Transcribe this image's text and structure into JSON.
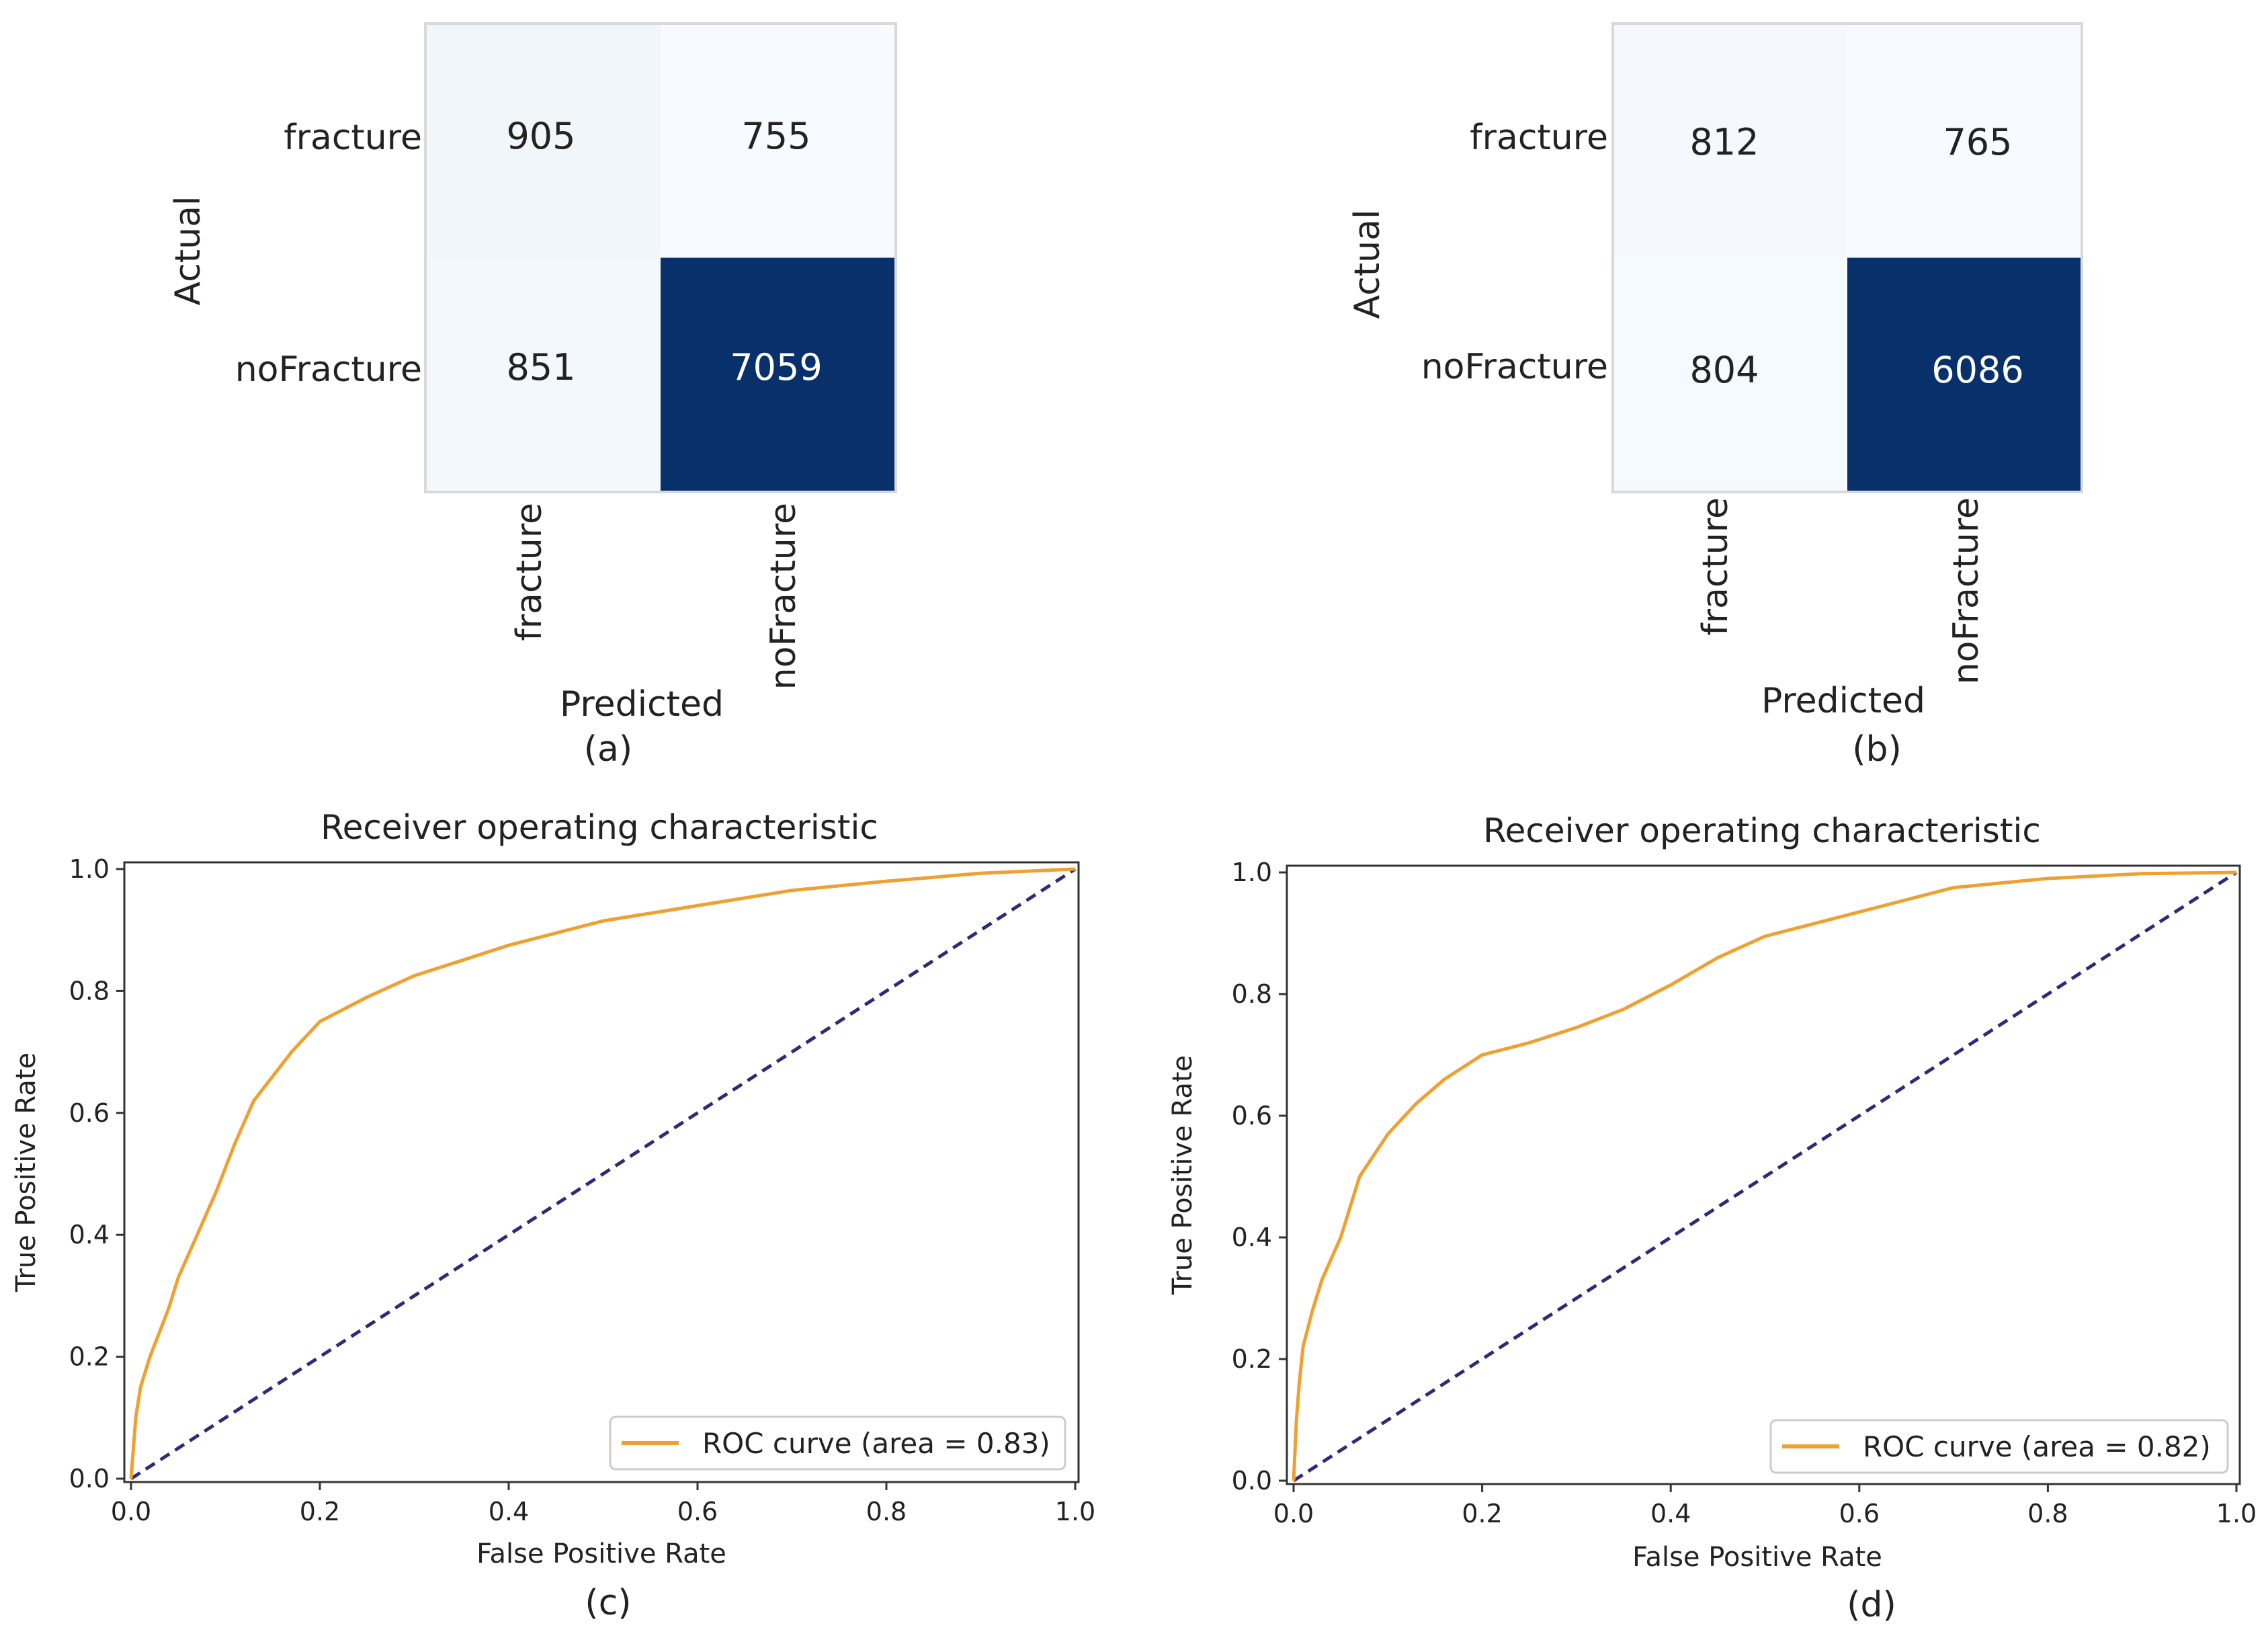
{
  "chart_data": [
    {
      "type": "heatmap",
      "caption": "(a)",
      "ylabel": "Actual",
      "xlabel": "Predicted",
      "row_labels": [
        "fracture",
        "noFracture"
      ],
      "col_labels": [
        "fracture",
        "noFracture"
      ],
      "matrix": [
        [
          905,
          755
        ],
        [
          851,
          7059
        ]
      ],
      "colors": {
        "low": "#f7fbff",
        "high": "#08306b",
        "text_dark": "#222222",
        "text_light": "#ffffff"
      }
    },
    {
      "type": "heatmap",
      "caption": "(b)",
      "ylabel": "Actual",
      "xlabel": "Predicted",
      "row_labels": [
        "fracture",
        "noFracture"
      ],
      "col_labels": [
        "fracture",
        "noFracture"
      ],
      "matrix": [
        [
          812,
          765
        ],
        [
          804,
          6086
        ]
      ],
      "colors": {
        "low": "#f7fbff",
        "high": "#08306b",
        "text_dark": "#222222",
        "text_light": "#ffffff"
      }
    },
    {
      "type": "line",
      "caption": "(c)",
      "title": "Receiver operating characteristic",
      "xlabel": "False Positive Rate",
      "ylabel": "True Positive Rate",
      "xlim": [
        0.0,
        1.0
      ],
      "ylim": [
        0.0,
        1.0
      ],
      "xticks": [
        "0.0",
        "0.2",
        "0.4",
        "0.6",
        "0.8",
        "1.0"
      ],
      "yticks": [
        "0.0",
        "0.2",
        "0.4",
        "0.6",
        "0.8",
        "1.0"
      ],
      "legend_position": "lower-right",
      "series": [
        {
          "name": "ROC curve (area = 0.83)",
          "color": "#f0a030",
          "style": "solid",
          "x": [
            0,
            0.005,
            0.01,
            0.02,
            0.03,
            0.04,
            0.05,
            0.07,
            0.09,
            0.11,
            0.13,
            0.15,
            0.17,
            0.2,
            0.25,
            0.3,
            0.35,
            0.4,
            0.45,
            0.5,
            0.6,
            0.7,
            0.8,
            0.9,
            1.0
          ],
          "y": [
            0,
            0.1,
            0.15,
            0.2,
            0.24,
            0.28,
            0.33,
            0.4,
            0.47,
            0.55,
            0.62,
            0.66,
            0.7,
            0.75,
            0.79,
            0.825,
            0.85,
            0.875,
            0.895,
            0.915,
            0.94,
            0.965,
            0.98,
            0.993,
            1.0
          ]
        },
        {
          "color": "#2b2b7a",
          "style": "dashed",
          "x": [
            0,
            1
          ],
          "y": [
            0,
            1
          ]
        }
      ]
    },
    {
      "type": "line",
      "caption": "(d)",
      "title": "Receiver operating characteristic",
      "xlabel": "False Positive Rate",
      "ylabel": "True Positive Rate",
      "xlim": [
        0.0,
        1.0
      ],
      "ylim": [
        0.0,
        1.0
      ],
      "xticks": [
        "0.0",
        "0.2",
        "0.4",
        "0.6",
        "0.8",
        "1.0"
      ],
      "yticks": [
        "0.0",
        "0.2",
        "0.4",
        "0.6",
        "0.8",
        "1.0"
      ],
      "legend_position": "lower-right",
      "series": [
        {
          "name": "ROC curve (area = 0.82)",
          "color": "#f0a030",
          "style": "solid",
          "x": [
            0,
            0.003,
            0.006,
            0.01,
            0.02,
            0.03,
            0.05,
            0.07,
            0.1,
            0.13,
            0.16,
            0.2,
            0.25,
            0.3,
            0.35,
            0.4,
            0.45,
            0.5,
            0.6,
            0.7,
            0.8,
            0.9,
            1.0
          ],
          "y": [
            0,
            0.1,
            0.16,
            0.22,
            0.28,
            0.33,
            0.4,
            0.5,
            0.57,
            0.62,
            0.66,
            0.7,
            0.72,
            0.745,
            0.775,
            0.815,
            0.86,
            0.895,
            0.935,
            0.975,
            0.99,
            0.998,
            1.0
          ]
        },
        {
          "color": "#2b2b7a",
          "style": "dashed",
          "x": [
            0,
            1
          ],
          "y": [
            0,
            1
          ]
        }
      ]
    }
  ]
}
